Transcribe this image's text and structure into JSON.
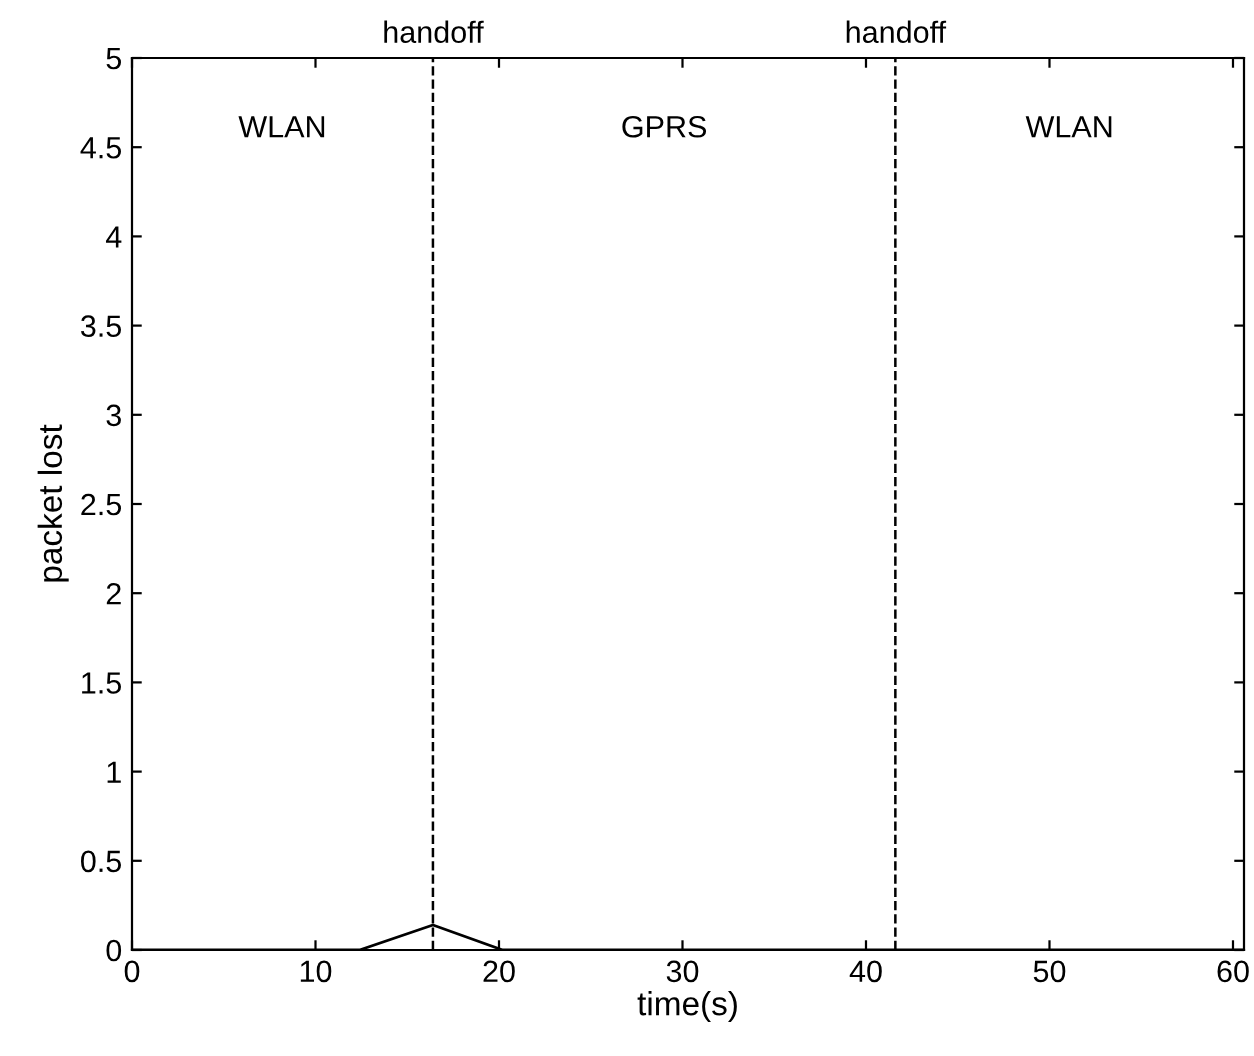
{
  "chart_data": {
    "type": "line",
    "xlabel": "time(s)",
    "ylabel": "packet lost",
    "x": [
      0,
      12.4,
      16.4,
      20.2,
      60.6
    ],
    "series": [
      {
        "color": "#000000",
        "values": [
          0,
          0,
          0.14,
          0,
          0
        ]
      }
    ],
    "xlim": [
      0,
      60.6
    ],
    "ylim": [
      0,
      5
    ],
    "xticks": [
      0,
      10,
      20,
      30,
      40,
      50,
      60
    ],
    "yticks": [
      0,
      0.5,
      1,
      1.5,
      2,
      2.5,
      3,
      3.5,
      4,
      4.5,
      5
    ],
    "ref_lines": [
      {
        "axis": "x",
        "value": 16.4,
        "label": "handoff",
        "color": "#000000",
        "line_style": "dashed"
      },
      {
        "axis": "x",
        "value": 41.6,
        "label": "handoff",
        "color": "#000000",
        "line_style": "dashed"
      }
    ],
    "annotations": [
      "WLAN",
      "GPRS",
      "WLAN"
    ],
    "grid": false,
    "legend": false,
    "marker": "none",
    "line_style": "solid"
  }
}
